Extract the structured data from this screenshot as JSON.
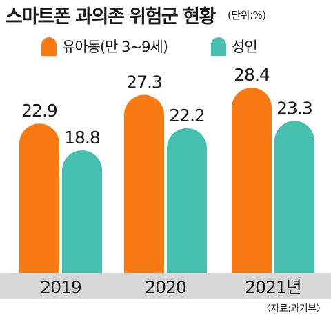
{
  "title": "스마트폰 과의존 위험군 현황",
  "unit": "(단위:%)",
  "source": "〈자료:과기부〉",
  "colors": {
    "youth": "#f77a12",
    "adult": "#46bfae",
    "axis_band": "#d7d7d7"
  },
  "chart_data": {
    "type": "bar",
    "categories": [
      "2019",
      "2020",
      "2021년"
    ],
    "series": [
      {
        "name": "유아동(만 3~9세)",
        "values": [
          22.9,
          27.3,
          28.4
        ]
      },
      {
        "name": "성인",
        "values": [
          18.8,
          22.2,
          23.3
        ]
      }
    ],
    "title": "스마트폰 과의존 위험군 현황",
    "ylabel": "",
    "xlabel": "",
    "ylim": [
      0,
      30
    ],
    "grid": false,
    "legend": "top-left"
  }
}
